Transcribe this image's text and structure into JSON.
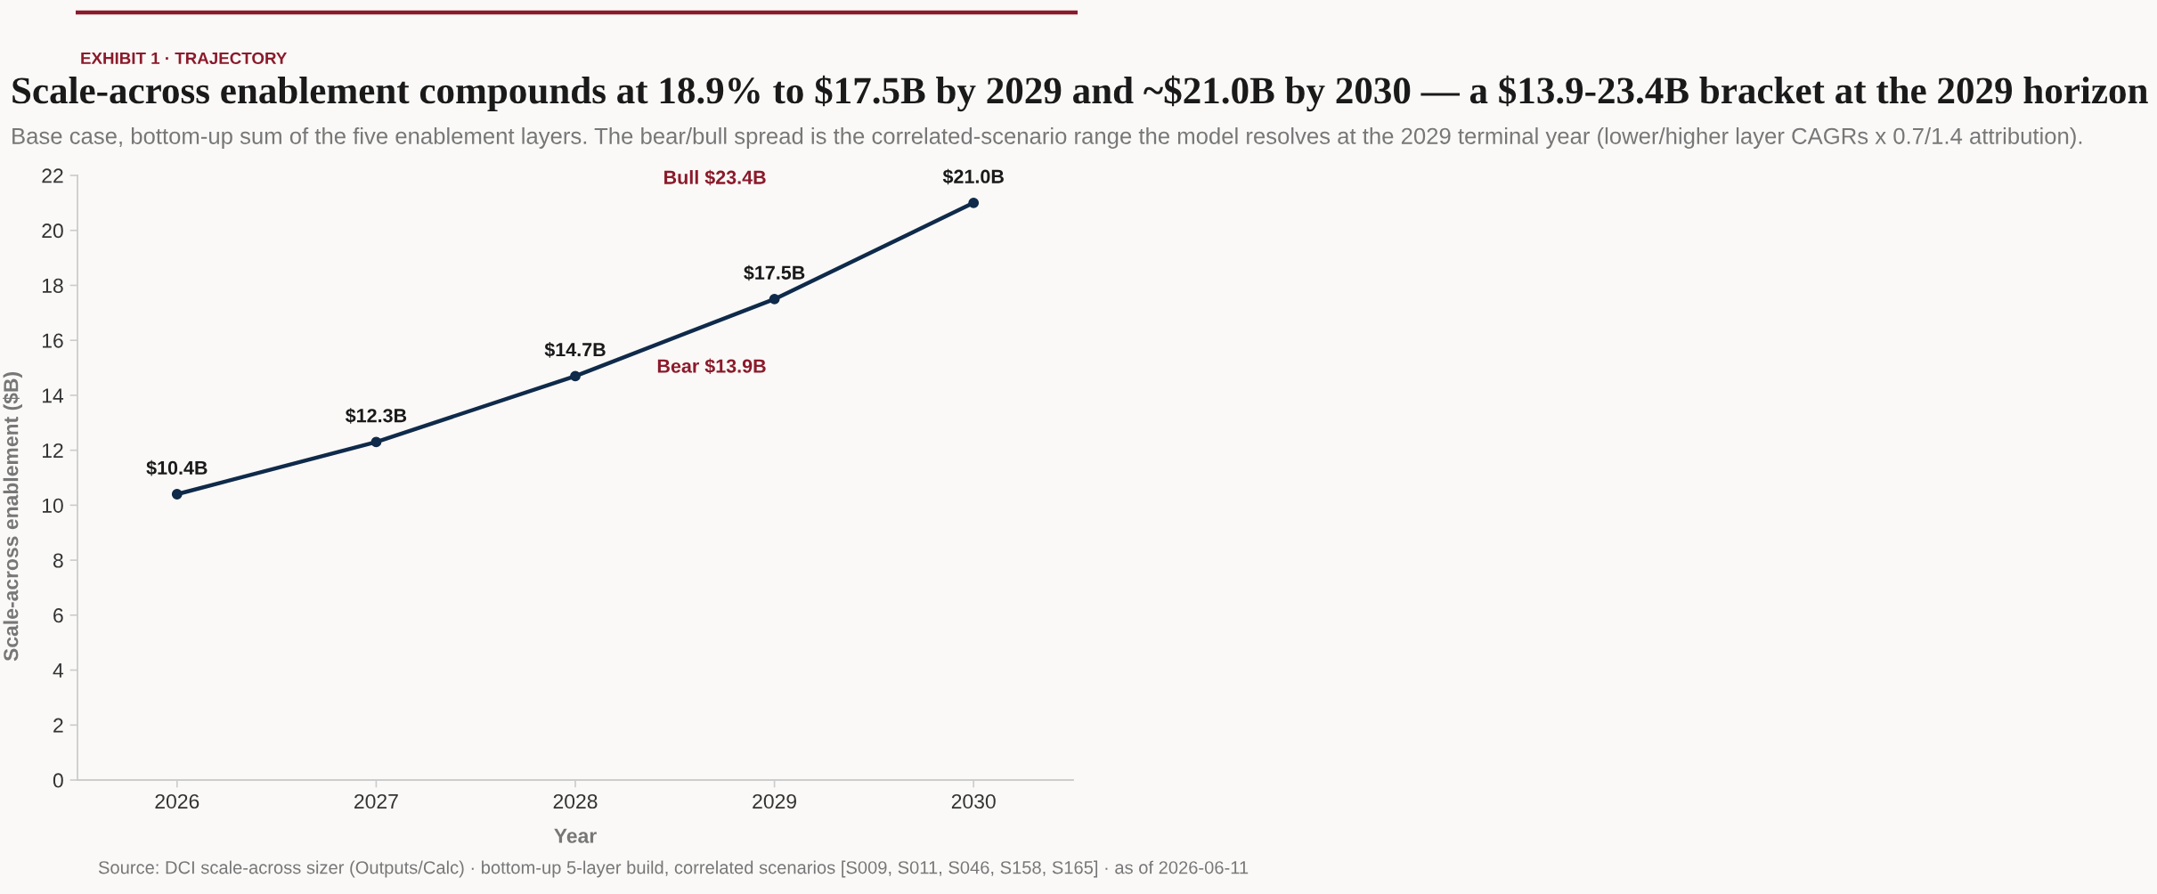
{
  "chart_data": {
    "type": "line",
    "title": "Scale-across enablement compounds at 18.9% to $17.5B by 2029 and ~$21.0B by 2030 — a $13.9-23.4B bracket at the 2029 horizon",
    "subtitle": "Base case, bottom-up sum of the five enablement layers. The bear/bull spread is the correlated-scenario range the model resolves at the 2029 terminal year (lower/higher layer CAGRs x 0.7/1.4 attribution).",
    "xlabel": "Year",
    "ylabel": "Scale-across enablement ($B)",
    "annotations": [
      "EXHIBIT 1 · TRAJECTORY",
      "Bull $23.4B",
      "Bear $13.9B",
      "Source: DCI scale-across sizer (Outputs/Calc) · bottom-up 5-layer build, correlated scenarios [S009, S011, S046, S158, S165] · as of 2026-06-11"
    ],
    "x": [
      2026,
      2027,
      2028,
      2029,
      2030
    ],
    "values": [
      10.4,
      12.3,
      14.7,
      17.5,
      21.0
    ],
    "value_labels": [
      "$10.4B",
      "$12.3B",
      "$14.7B",
      "$17.5B",
      "$21.0B"
    ],
    "color": "#0f2a4a",
    "xlim": [
      2025.5,
      2030.5
    ],
    "xticks": [
      2026,
      2027,
      2028,
      2029,
      2030
    ],
    "ylim": [
      0,
      22
    ],
    "yticks": [
      0,
      2,
      4,
      6,
      8,
      10,
      12,
      14,
      16,
      18,
      20,
      22
    ],
    "grid": false,
    "legend": false,
    "marker": "circle",
    "line_style": "solid"
  }
}
